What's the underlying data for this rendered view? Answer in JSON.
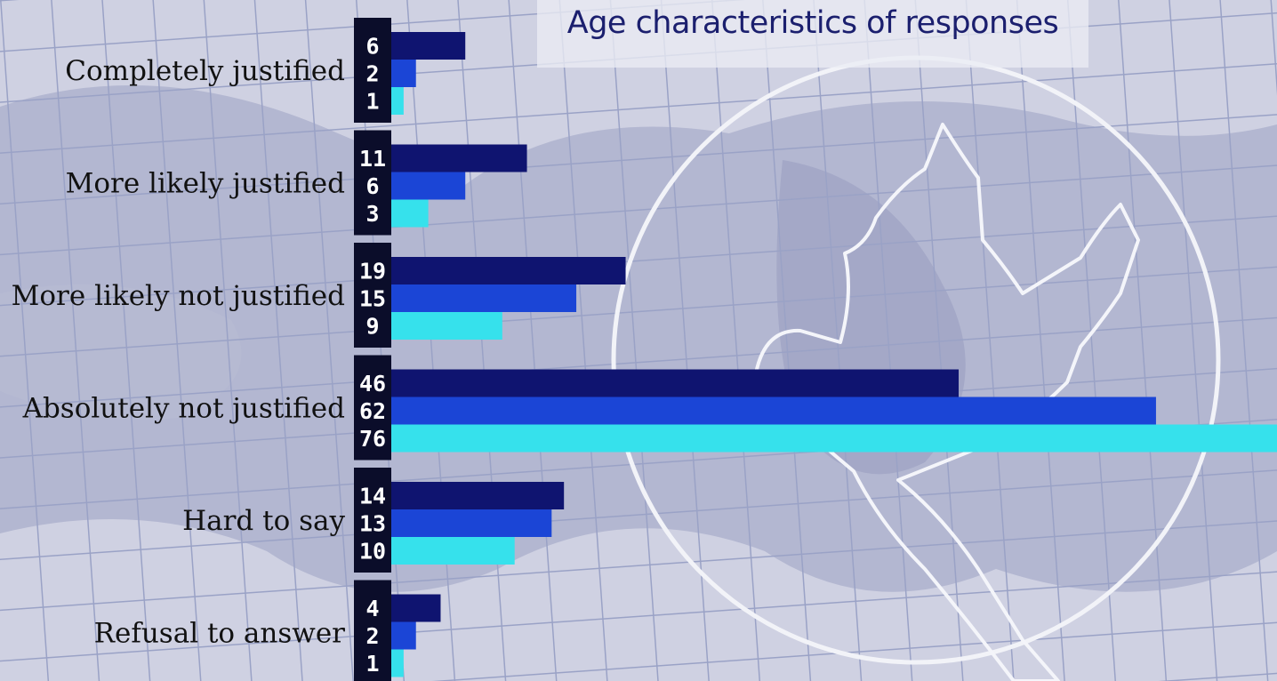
{
  "chart_data": {
    "type": "bar",
    "orientation": "horizontal",
    "title": "Age characteristics of responses",
    "categories": [
      "Completely justified",
      "More likely justified",
      "More likely not justified",
      "Absolutely not justified",
      "Hard to say",
      "Refusal to answer"
    ],
    "series": [
      {
        "values": [
          6,
          11,
          19,
          46,
          14,
          4
        ]
      },
      {
        "values": [
          2,
          6,
          15,
          62,
          13,
          2
        ]
      },
      {
        "values": [
          1,
          3,
          9,
          76,
          10,
          1
        ]
      }
    ],
    "xlabel": "",
    "ylabel": "",
    "grid": false,
    "legend": "none"
  },
  "colors": {
    "series": [
      "#0f1470",
      "#1b45d6",
      "#36e1ec"
    ],
    "label_block": "#0b0d2a",
    "title_text": "#1b1f6e"
  }
}
